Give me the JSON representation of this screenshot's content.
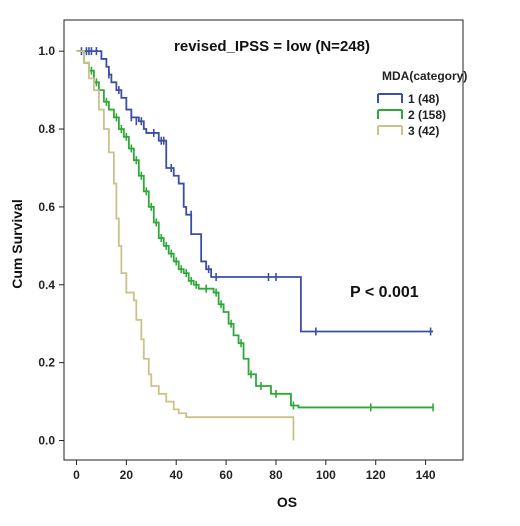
{
  "chart_data": {
    "type": "line",
    "subtype": "kaplan-meier",
    "title": "revised_IPSS = low (N=248)",
    "xlabel": "OS",
    "ylabel": "Cum Survival",
    "xlim": [
      -5,
      155
    ],
    "ylim": [
      -0.05,
      1.08
    ],
    "xticks": [
      0,
      20,
      40,
      60,
      80,
      100,
      120,
      140
    ],
    "yticks": [
      0.0,
      0.2,
      0.4,
      0.6,
      0.8,
      1.0
    ],
    "ytick_labels": [
      "0.0",
      "0.2",
      "0.4",
      "0.6",
      "0.8",
      "1.0"
    ],
    "legend_title": "MDA(category)",
    "legend_position": "top-right",
    "annotation": "P < 0.001",
    "series": [
      {
        "name": "1 (48)",
        "color": "#3a4fa3",
        "steps": [
          [
            0,
            1.0
          ],
          [
            10,
            0.98
          ],
          [
            12,
            0.96
          ],
          [
            13,
            0.94
          ],
          [
            14,
            0.92
          ],
          [
            16,
            0.9
          ],
          [
            18,
            0.88
          ],
          [
            20,
            0.85
          ],
          [
            22,
            0.83
          ],
          [
            25,
            0.82
          ],
          [
            27,
            0.8
          ],
          [
            28,
            0.79
          ],
          [
            33,
            0.77
          ],
          [
            36,
            0.7
          ],
          [
            39,
            0.68
          ],
          [
            41,
            0.66
          ],
          [
            43,
            0.6
          ],
          [
            44,
            0.58
          ],
          [
            46,
            0.53
          ],
          [
            50,
            0.46
          ],
          [
            52,
            0.44
          ],
          [
            54,
            0.42
          ],
          [
            90,
            0.28
          ],
          [
            143,
            0.28
          ]
        ],
        "censored": [
          [
            2,
            1.0
          ],
          [
            4,
            1.0
          ],
          [
            5,
            1.0
          ],
          [
            6,
            1.0
          ],
          [
            8,
            1.0
          ],
          [
            13,
            0.94
          ],
          [
            17,
            0.9
          ],
          [
            22,
            0.83
          ],
          [
            24,
            0.82
          ],
          [
            26,
            0.82
          ],
          [
            31,
            0.79
          ],
          [
            34,
            0.77
          ],
          [
            35,
            0.77
          ],
          [
            38,
            0.7
          ],
          [
            46,
            0.58
          ],
          [
            53,
            0.44
          ],
          [
            56,
            0.42
          ],
          [
            77,
            0.42
          ],
          [
            80,
            0.42
          ],
          [
            96,
            0.28
          ],
          [
            142,
            0.28
          ]
        ]
      },
      {
        "name": "2 (158)",
        "color": "#2fa83a",
        "steps": [
          [
            0,
            1.0
          ],
          [
            3,
            0.97
          ],
          [
            5,
            0.95
          ],
          [
            7,
            0.92
          ],
          [
            9,
            0.9
          ],
          [
            11,
            0.87
          ],
          [
            13,
            0.85
          ],
          [
            15,
            0.83
          ],
          [
            17,
            0.8
          ],
          [
            19,
            0.78
          ],
          [
            21,
            0.75
          ],
          [
            23,
            0.72
          ],
          [
            25,
            0.68
          ],
          [
            27,
            0.64
          ],
          [
            29,
            0.6
          ],
          [
            31,
            0.56
          ],
          [
            33,
            0.52
          ],
          [
            35,
            0.5
          ],
          [
            37,
            0.48
          ],
          [
            39,
            0.46
          ],
          [
            41,
            0.44
          ],
          [
            43,
            0.43
          ],
          [
            45,
            0.41
          ],
          [
            47,
            0.4
          ],
          [
            49,
            0.39
          ],
          [
            55,
            0.38
          ],
          [
            57,
            0.35
          ],
          [
            59,
            0.33
          ],
          [
            61,
            0.3
          ],
          [
            63,
            0.27
          ],
          [
            65,
            0.25
          ],
          [
            67,
            0.21
          ],
          [
            69,
            0.17
          ],
          [
            72,
            0.14
          ],
          [
            78,
            0.12
          ],
          [
            86,
            0.09
          ],
          [
            89,
            0.085
          ],
          [
            143,
            0.085
          ]
        ],
        "censored": [
          [
            6,
            0.95
          ],
          [
            8,
            0.92
          ],
          [
            12,
            0.87
          ],
          [
            16,
            0.83
          ],
          [
            18,
            0.8
          ],
          [
            20,
            0.78
          ],
          [
            22,
            0.75
          ],
          [
            24,
            0.72
          ],
          [
            26,
            0.68
          ],
          [
            28,
            0.64
          ],
          [
            30,
            0.6
          ],
          [
            32,
            0.56
          ],
          [
            34,
            0.52
          ],
          [
            36,
            0.5
          ],
          [
            38,
            0.48
          ],
          [
            40,
            0.46
          ],
          [
            42,
            0.44
          ],
          [
            44,
            0.43
          ],
          [
            46,
            0.41
          ],
          [
            48,
            0.4
          ],
          [
            52,
            0.39
          ],
          [
            56,
            0.38
          ],
          [
            58,
            0.35
          ],
          [
            62,
            0.3
          ],
          [
            66,
            0.25
          ],
          [
            70,
            0.17
          ],
          [
            74,
            0.14
          ],
          [
            80,
            0.12
          ],
          [
            87,
            0.09
          ],
          [
            118,
            0.085
          ],
          [
            143,
            0.085
          ]
        ]
      },
      {
        "name": "3 (42)",
        "color": "#c9c38a",
        "steps": [
          [
            0,
            1.0
          ],
          [
            3,
            0.97
          ],
          [
            5,
            0.93
          ],
          [
            7,
            0.9
          ],
          [
            9,
            0.85
          ],
          [
            11,
            0.8
          ],
          [
            13,
            0.74
          ],
          [
            15,
            0.66
          ],
          [
            16,
            0.57
          ],
          [
            17,
            0.5
          ],
          [
            18,
            0.43
          ],
          [
            20,
            0.38
          ],
          [
            23,
            0.36
          ],
          [
            24,
            0.31
          ],
          [
            26,
            0.26
          ],
          [
            27,
            0.21
          ],
          [
            29,
            0.17
          ],
          [
            30,
            0.14
          ],
          [
            33,
            0.12
          ],
          [
            36,
            0.1
          ],
          [
            39,
            0.08
          ],
          [
            41,
            0.07
          ],
          [
            44,
            0.06
          ],
          [
            86,
            0.06
          ],
          [
            87,
            0.0
          ]
        ],
        "censored": []
      }
    ]
  }
}
